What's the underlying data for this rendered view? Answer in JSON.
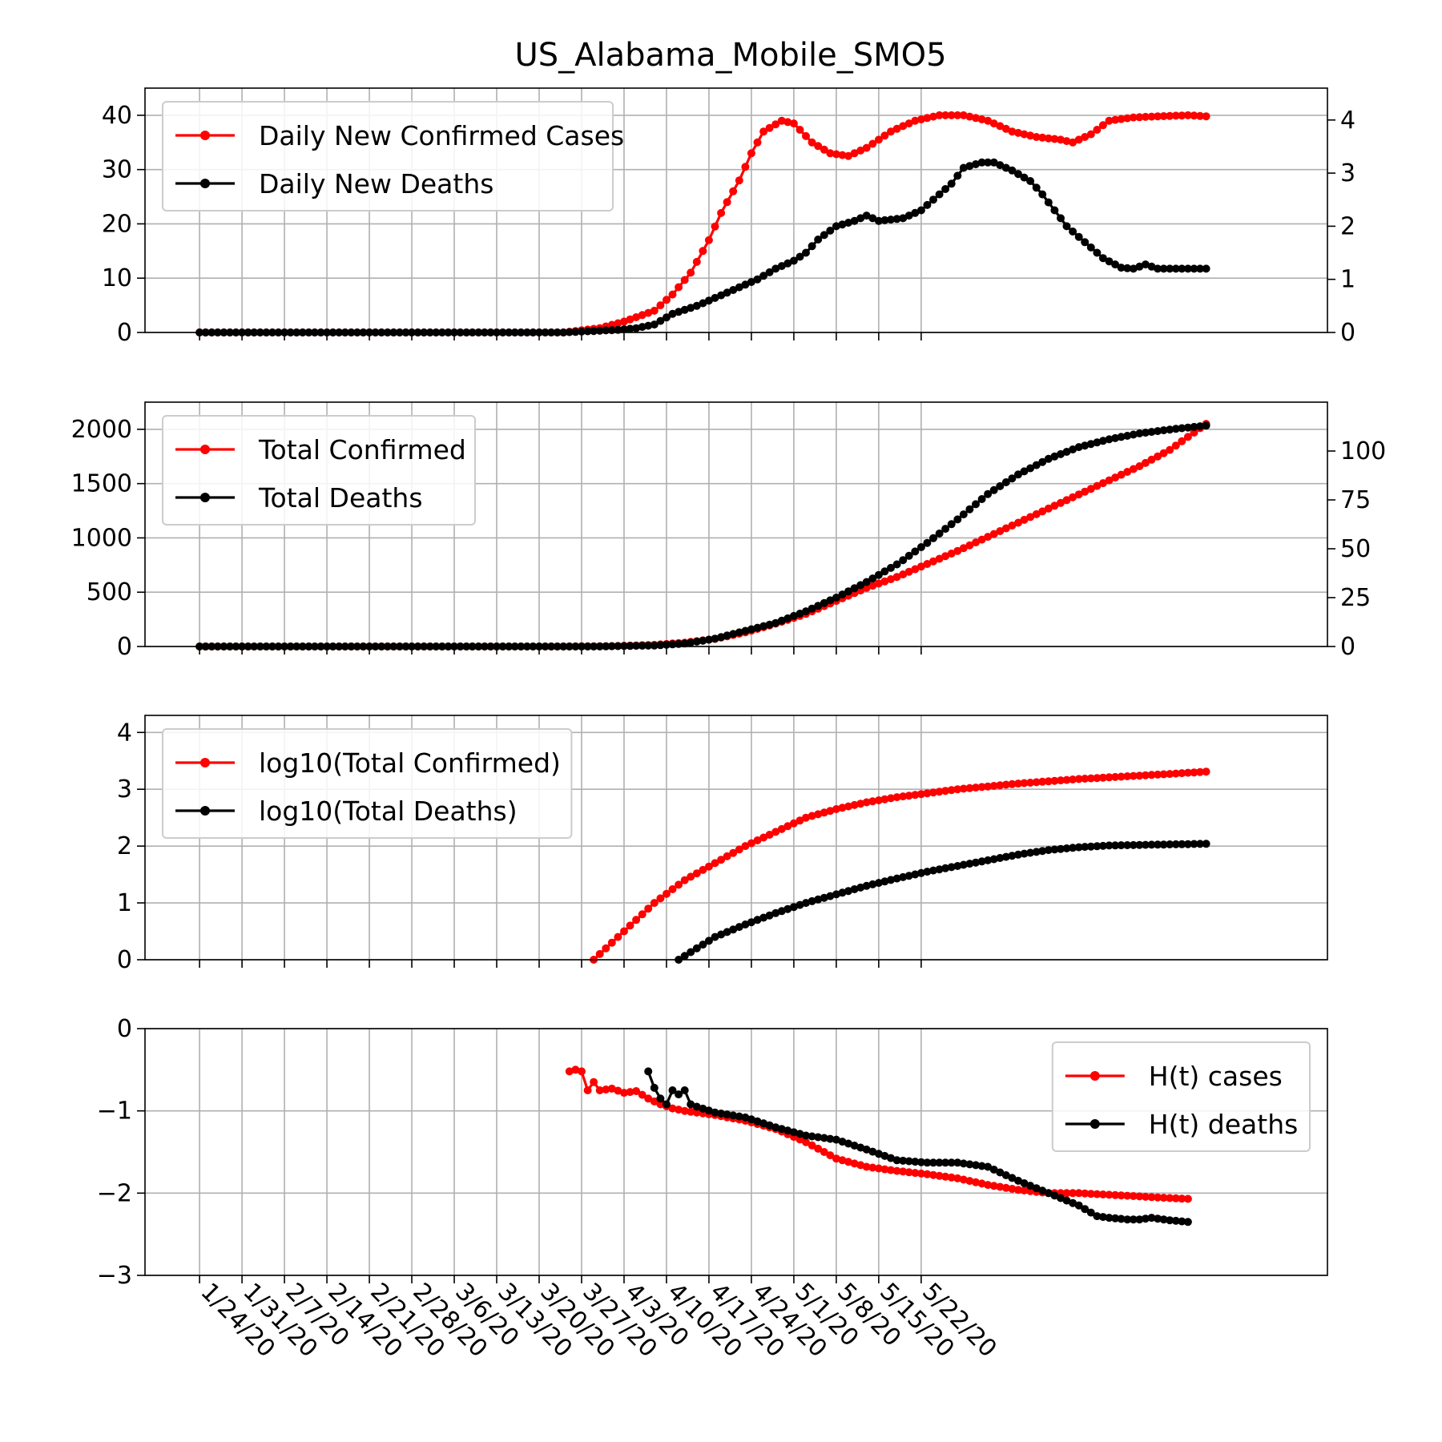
{
  "chart_data": {
    "title": "US_Alabama_Mobile_SMO5",
    "dates": [
      "1/24/20",
      "1/31/20",
      "2/7/20",
      "2/14/20",
      "2/21/20",
      "2/28/20",
      "3/6/20",
      "3/13/20",
      "3/20/20",
      "3/27/20",
      "4/3/20",
      "4/10/20",
      "4/17/20",
      "4/24/20",
      "5/1/20",
      "5/8/20",
      "5/15/20",
      "5/22/20"
    ],
    "start_date": "1/24/20",
    "x_range_days": [
      -9,
      186
    ],
    "panels": [
      {
        "type": "line",
        "ylim_left": [
          0,
          45
        ],
        "ylim_right": [
          0,
          4.6
        ],
        "yticks_left": [
          "0",
          "10",
          "20",
          "30",
          "40"
        ],
        "yticks_right": [
          "0",
          "1",
          "2",
          "3",
          "4"
        ],
        "legend_loc": "upper left",
        "grid": true,
        "series": [
          {
            "name": "Daily New Confirmed Cases",
            "color": "#ff0000",
            "axis": "left",
            "points": [
              [
                0,
                0
              ],
              [
                60,
                0
              ],
              [
                66,
                0.8
              ],
              [
                70,
                2
              ],
              [
                75,
                4
              ],
              [
                78,
                7
              ],
              [
                81,
                11
              ],
              [
                84,
                17
              ],
              [
                86,
                22
              ],
              [
                89,
                28
              ],
              [
                91,
                33
              ],
              [
                93,
                37
              ],
              [
                96,
                39
              ],
              [
                98,
                38.5
              ],
              [
                101,
                35
              ],
              [
                104,
                33
              ],
              [
                107,
                32.5
              ],
              [
                110,
                34
              ],
              [
                114,
                37
              ],
              [
                118,
                39
              ],
              [
                122,
                40
              ],
              [
                126,
                40
              ],
              [
                130,
                39
              ],
              [
                134,
                37
              ],
              [
                138,
                36
              ],
              [
                142,
                35.5
              ],
              [
                144,
                35
              ],
              [
                147,
                36.5
              ],
              [
                150,
                39
              ],
              [
                154,
                39.6
              ],
              [
                158,
                39.8
              ],
              [
                163,
                40
              ],
              [
                166,
                39.8
              ]
            ]
          },
          {
            "name": "Daily New Deaths",
            "color": "#000000",
            "axis": "right",
            "points": [
              [
                0,
                0
              ],
              [
                60,
                0
              ],
              [
                69,
                0.05
              ],
              [
                72,
                0.08
              ],
              [
                75,
                0.15
              ],
              [
                78,
                0.35
              ],
              [
                82,
                0.5
              ],
              [
                85,
                0.65
              ],
              [
                88,
                0.8
              ],
              [
                92,
                1.0
              ],
              [
                95,
                1.2
              ],
              [
                98,
                1.35
              ],
              [
                100,
                1.5
              ],
              [
                102,
                1.75
              ],
              [
                105,
                2.0
              ],
              [
                108,
                2.1
              ],
              [
                110,
                2.2
              ],
              [
                112,
                2.1
              ],
              [
                116,
                2.15
              ],
              [
                119,
                2.3
              ],
              [
                122,
                2.6
              ],
              [
                124,
                2.8
              ],
              [
                126,
                3.1
              ],
              [
                129,
                3.2
              ],
              [
                131,
                3.2
              ],
              [
                134,
                3.05
              ],
              [
                137,
                2.85
              ],
              [
                139,
                2.6
              ],
              [
                141,
                2.3
              ],
              [
                143,
                2.0
              ],
              [
                146,
                1.7
              ],
              [
                149,
                1.4
              ],
              [
                152,
                1.22
              ],
              [
                154,
                1.2
              ],
              [
                156,
                1.28
              ],
              [
                158,
                1.2
              ],
              [
                160,
                1.2
              ],
              [
                166,
                1.2
              ]
            ]
          }
        ]
      },
      {
        "type": "line",
        "ylim_left": [
          0,
          2250
        ],
        "ylim_right": [
          0,
          125
        ],
        "yticks_left": [
          "0",
          "500",
          "1000",
          "1500",
          "2000"
        ],
        "yticks_right": [
          "0",
          "25",
          "50",
          "75",
          "100"
        ],
        "legend_loc": "upper left",
        "grid": true,
        "series": [
          {
            "name": "Total Confirmed",
            "color": "#ff0000",
            "axis": "left",
            "points": [
              [
                0,
                0
              ],
              [
                60,
                0
              ],
              [
                68,
                3
              ],
              [
                75,
                15
              ],
              [
                80,
                35
              ],
              [
                85,
                70
              ],
              [
                90,
                130
              ],
              [
                95,
                210
              ],
              [
                100,
                300
              ],
              [
                105,
                420
              ],
              [
                110,
                540
              ],
              [
                115,
                640
              ],
              [
                120,
                760
              ],
              [
                125,
                880
              ],
              [
                130,
                1010
              ],
              [
                135,
                1140
              ],
              [
                140,
                1270
              ],
              [
                145,
                1400
              ],
              [
                150,
                1530
              ],
              [
                155,
                1660
              ],
              [
                160,
                1810
              ],
              [
                166,
                2050
              ]
            ]
          },
          {
            "name": "Total Deaths",
            "color": "#000000",
            "axis": "right",
            "points": [
              [
                0,
                0
              ],
              [
                65,
                0
              ],
              [
                75,
                0.5
              ],
              [
                80,
                1.5
              ],
              [
                85,
                4
              ],
              [
                90,
                8
              ],
              [
                95,
                12
              ],
              [
                100,
                18
              ],
              [
                105,
                25
              ],
              [
                110,
                33
              ],
              [
                115,
                42
              ],
              [
                120,
                53
              ],
              [
                125,
                65
              ],
              [
                130,
                78
              ],
              [
                135,
                88
              ],
              [
                140,
                96
              ],
              [
                145,
                102
              ],
              [
                150,
                106
              ],
              [
                155,
                109
              ],
              [
                160,
                111
              ],
              [
                166,
                113
              ]
            ]
          }
        ]
      },
      {
        "type": "line",
        "ylim_left": [
          0,
          4.3
        ],
        "yticks_left": [
          "0",
          "1",
          "2",
          "3",
          "4"
        ],
        "legend_loc": "upper left",
        "grid": true,
        "series": [
          {
            "name": "log10(Total Confirmed)",
            "color": "#ff0000",
            "axis": "left",
            "points": [
              [
                65,
                0
              ],
              [
                70,
                0.5
              ],
              [
                75,
                1.0
              ],
              [
                80,
                1.4
              ],
              [
                85,
                1.7
              ],
              [
                90,
                2.0
              ],
              [
                95,
                2.25
              ],
              [
                100,
                2.5
              ],
              [
                105,
                2.65
              ],
              [
                110,
                2.77
              ],
              [
                115,
                2.86
              ],
              [
                120,
                2.93
              ],
              [
                125,
                3.0
              ],
              [
                130,
                3.05
              ],
              [
                135,
                3.1
              ],
              [
                140,
                3.14
              ],
              [
                145,
                3.18
              ],
              [
                150,
                3.21
              ],
              [
                155,
                3.24
              ],
              [
                160,
                3.27
              ],
              [
                166,
                3.31
              ]
            ]
          },
          {
            "name": "log10(Total Deaths)",
            "color": "#000000",
            "axis": "left",
            "points": [
              [
                79,
                0
              ],
              [
                82,
                0.2
              ],
              [
                85,
                0.4
              ],
              [
                90,
                0.62
              ],
              [
                95,
                0.82
              ],
              [
                100,
                1.0
              ],
              [
                105,
                1.15
              ],
              [
                110,
                1.3
              ],
              [
                115,
                1.43
              ],
              [
                120,
                1.55
              ],
              [
                125,
                1.65
              ],
              [
                130,
                1.75
              ],
              [
                135,
                1.85
              ],
              [
                140,
                1.93
              ],
              [
                145,
                1.98
              ],
              [
                150,
                2.01
              ],
              [
                155,
                2.02
              ],
              [
                160,
                2.03
              ],
              [
                166,
                2.04
              ]
            ]
          }
        ]
      },
      {
        "type": "line",
        "ylim_left": [
          -3,
          0
        ],
        "yticks_left": [
          "−3",
          "−2",
          "−1",
          "0"
        ],
        "legend_loc": "upper right",
        "grid": true,
        "series": [
          {
            "name": "H(t) cases",
            "color": "#ff0000",
            "axis": "left",
            "points": [
              [
                61,
                -0.52
              ],
              [
                62,
                -0.5
              ],
              [
                63,
                -0.52
              ],
              [
                64,
                -0.75
              ],
              [
                65,
                -0.65
              ],
              [
                66,
                -0.75
              ],
              [
                68,
                -0.73
              ],
              [
                70,
                -0.78
              ],
              [
                72,
                -0.76
              ],
              [
                74,
                -0.85
              ],
              [
                76,
                -0.92
              ],
              [
                78,
                -0.97
              ],
              [
                80,
                -1.0
              ],
              [
                85,
                -1.05
              ],
              [
                90,
                -1.12
              ],
              [
                95,
                -1.22
              ],
              [
                100,
                -1.38
              ],
              [
                105,
                -1.58
              ],
              [
                110,
                -1.68
              ],
              [
                115,
                -1.73
              ],
              [
                120,
                -1.77
              ],
              [
                125,
                -1.82
              ],
              [
                130,
                -1.9
              ],
              [
                135,
                -1.96
              ],
              [
                140,
                -2.0
              ],
              [
                145,
                -2.0
              ],
              [
                150,
                -2.02
              ],
              [
                155,
                -2.04
              ],
              [
                160,
                -2.06
              ],
              [
                163,
                -2.07
              ]
            ]
          },
          {
            "name": "H(t) deaths",
            "color": "#000000",
            "axis": "left",
            "points": [
              [
                74,
                -0.52
              ],
              [
                75,
                -0.72
              ],
              [
                76,
                -0.85
              ],
              [
                77,
                -0.92
              ],
              [
                78,
                -0.75
              ],
              [
                79,
                -0.8
              ],
              [
                80,
                -0.75
              ],
              [
                81,
                -0.92
              ],
              [
                82,
                -0.95
              ],
              [
                85,
                -1.02
              ],
              [
                90,
                -1.08
              ],
              [
                95,
                -1.2
              ],
              [
                100,
                -1.3
              ],
              [
                105,
                -1.35
              ],
              [
                110,
                -1.47
              ],
              [
                115,
                -1.6
              ],
              [
                120,
                -1.63
              ],
              [
                125,
                -1.63
              ],
              [
                130,
                -1.68
              ],
              [
                135,
                -1.85
              ],
              [
                140,
                -2.0
              ],
              [
                145,
                -2.15
              ],
              [
                148,
                -2.28
              ],
              [
                150,
                -2.3
              ],
              [
                153,
                -2.32
              ],
              [
                155,
                -2.32
              ],
              [
                157,
                -2.3
              ],
              [
                160,
                -2.33
              ],
              [
                163,
                -2.35
              ]
            ]
          }
        ]
      }
    ]
  }
}
